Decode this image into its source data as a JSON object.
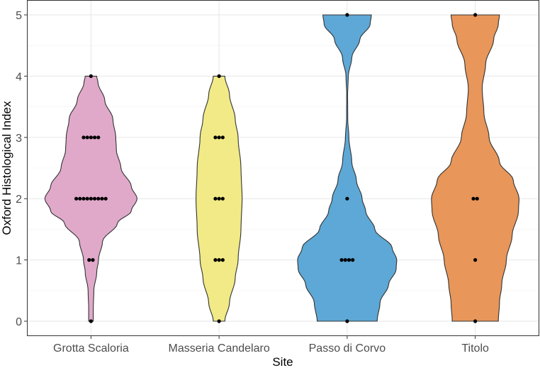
{
  "chart_data": {
    "type": "violin",
    "xlabel": "Site",
    "ylabel": "Oxford Histological Index",
    "ylim": [
      0,
      5
    ],
    "yticks": [
      "0",
      "1",
      "2",
      "3",
      "4",
      "5"
    ],
    "grid": true,
    "legend": "none",
    "categories": [
      "Grotta Scaloria",
      "Masseria Candelaro",
      "Passo di Corvo",
      "Titolo"
    ],
    "series": [
      {
        "category": "Grotta Scaloria",
        "color": "#E0A9C9",
        "points": [
          {
            "y": 0,
            "n": 1
          },
          {
            "y": 1,
            "n": 2
          },
          {
            "y": 2,
            "n": 9
          },
          {
            "y": 3,
            "n": 5
          },
          {
            "y": 4,
            "n": 1
          }
        ],
        "density": [
          [
            0,
            0.04
          ],
          [
            0.2,
            0.04
          ],
          [
            0.5,
            0.05
          ],
          [
            0.8,
            0.1
          ],
          [
            1.0,
            0.13
          ],
          [
            1.3,
            0.2
          ],
          [
            1.6,
            0.46
          ],
          [
            1.8,
            0.7
          ],
          [
            2.0,
            0.8
          ],
          [
            2.2,
            0.7
          ],
          [
            2.5,
            0.52
          ],
          [
            2.8,
            0.44
          ],
          [
            3.0,
            0.43
          ],
          [
            3.3,
            0.38
          ],
          [
            3.6,
            0.24
          ],
          [
            3.9,
            0.12
          ],
          [
            4.0,
            0.1
          ]
        ]
      },
      {
        "category": "Masseria Candelaro",
        "color": "#F1EA87",
        "points": [
          {
            "y": 0,
            "n": 1
          },
          {
            "y": 1,
            "n": 3
          },
          {
            "y": 2,
            "n": 3
          },
          {
            "y": 3,
            "n": 3
          },
          {
            "y": 4,
            "n": 1
          }
        ],
        "density": [
          [
            0,
            0.1
          ],
          [
            0.3,
            0.18
          ],
          [
            0.7,
            0.28
          ],
          [
            1.0,
            0.33
          ],
          [
            1.5,
            0.38
          ],
          [
            2.0,
            0.4
          ],
          [
            2.5,
            0.38
          ],
          [
            3.0,
            0.33
          ],
          [
            3.3,
            0.28
          ],
          [
            3.7,
            0.18
          ],
          [
            4.0,
            0.1
          ]
        ]
      },
      {
        "category": "Passo di Corvo",
        "color": "#5DA8D6",
        "points": [
          {
            "y": 0,
            "n": 1
          },
          {
            "y": 1,
            "n": 4
          },
          {
            "y": 2,
            "n": 1
          },
          {
            "y": 5,
            "n": 1
          }
        ],
        "density": [
          [
            0,
            0.52
          ],
          [
            0.3,
            0.57
          ],
          [
            0.6,
            0.72
          ],
          [
            0.85,
            0.85
          ],
          [
            1.0,
            0.86
          ],
          [
            1.2,
            0.78
          ],
          [
            1.5,
            0.48
          ],
          [
            1.8,
            0.32
          ],
          [
            2.0,
            0.26
          ],
          [
            2.3,
            0.16
          ],
          [
            2.6,
            0.08
          ],
          [
            3.0,
            0.03
          ],
          [
            3.3,
            0.01
          ],
          [
            3.7,
            0.008
          ],
          [
            4.0,
            0.02
          ],
          [
            4.3,
            0.08
          ],
          [
            4.6,
            0.22
          ],
          [
            4.85,
            0.4
          ],
          [
            5.0,
            0.42
          ]
        ]
      },
      {
        "category": "Titolo",
        "color": "#E8965A",
        "points": [
          {
            "y": 0,
            "n": 1
          },
          {
            "y": 1,
            "n": 1
          },
          {
            "y": 2,
            "n": 2
          },
          {
            "y": 5,
            "n": 1
          }
        ],
        "density": [
          [
            0,
            0.4
          ],
          [
            0.3,
            0.42
          ],
          [
            0.6,
            0.46
          ],
          [
            1.0,
            0.54
          ],
          [
            1.4,
            0.64
          ],
          [
            1.8,
            0.75
          ],
          [
            2.0,
            0.76
          ],
          [
            2.3,
            0.66
          ],
          [
            2.6,
            0.42
          ],
          [
            3.0,
            0.24
          ],
          [
            3.4,
            0.15
          ],
          [
            3.8,
            0.12
          ],
          [
            4.2,
            0.18
          ],
          [
            4.6,
            0.32
          ],
          [
            4.85,
            0.4
          ],
          [
            5.0,
            0.42
          ]
        ]
      }
    ]
  }
}
